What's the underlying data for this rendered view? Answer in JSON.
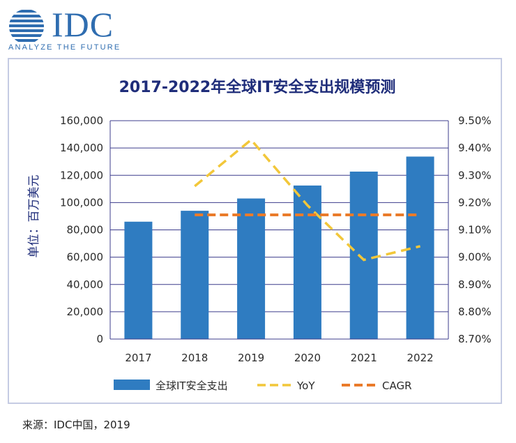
{
  "logo": {
    "wordmark": "IDC",
    "tagline": "ANALYZE THE FUTURE"
  },
  "source": "来源：IDC中国，2019",
  "colors": {
    "bar": "#2f7cc1",
    "yoy": "#f2c73a",
    "cagr": "#ea7b2a",
    "title": "#1f2d7a",
    "axis": "#2b2b2b"
  },
  "chart_data": {
    "type": "bar",
    "title": "2017-2022年全球IT安全支出规模预测",
    "ylabel": "单位：百万美元",
    "y2label": "",
    "categories": [
      "2017",
      "2018",
      "2019",
      "2020",
      "2021",
      "2022"
    ],
    "ylim": [
      0,
      160000
    ],
    "y_ticks": [
      "0",
      "20,000",
      "40,000",
      "60,000",
      "80,000",
      "100,000",
      "120,000",
      "140,000",
      "160,000"
    ],
    "y2lim": [
      0.087,
      0.095
    ],
    "y2_ticks": [
      "8.70%",
      "8.80%",
      "8.90%",
      "9.00%",
      "9.10%",
      "9.20%",
      "9.30%",
      "9.40%",
      "9.50%"
    ],
    "grid": true,
    "legend_position": "bottom",
    "series": [
      {
        "name": "全球IT安全支出",
        "type": "bar",
        "axis": "left",
        "values": [
          86000,
          94000,
          103000,
          112500,
          122700,
          133700
        ]
      },
      {
        "name": "YoY",
        "type": "line",
        "style": "dashed",
        "axis": "right",
        "values": [
          null,
          0.0926,
          0.0943,
          0.0919,
          0.0899,
          0.0904
        ]
      },
      {
        "name": "CAGR",
        "type": "line",
        "style": "dashed",
        "axis": "right",
        "values": [
          null,
          0.09155,
          0.09155,
          0.09155,
          0.09155,
          0.09155
        ]
      }
    ]
  }
}
